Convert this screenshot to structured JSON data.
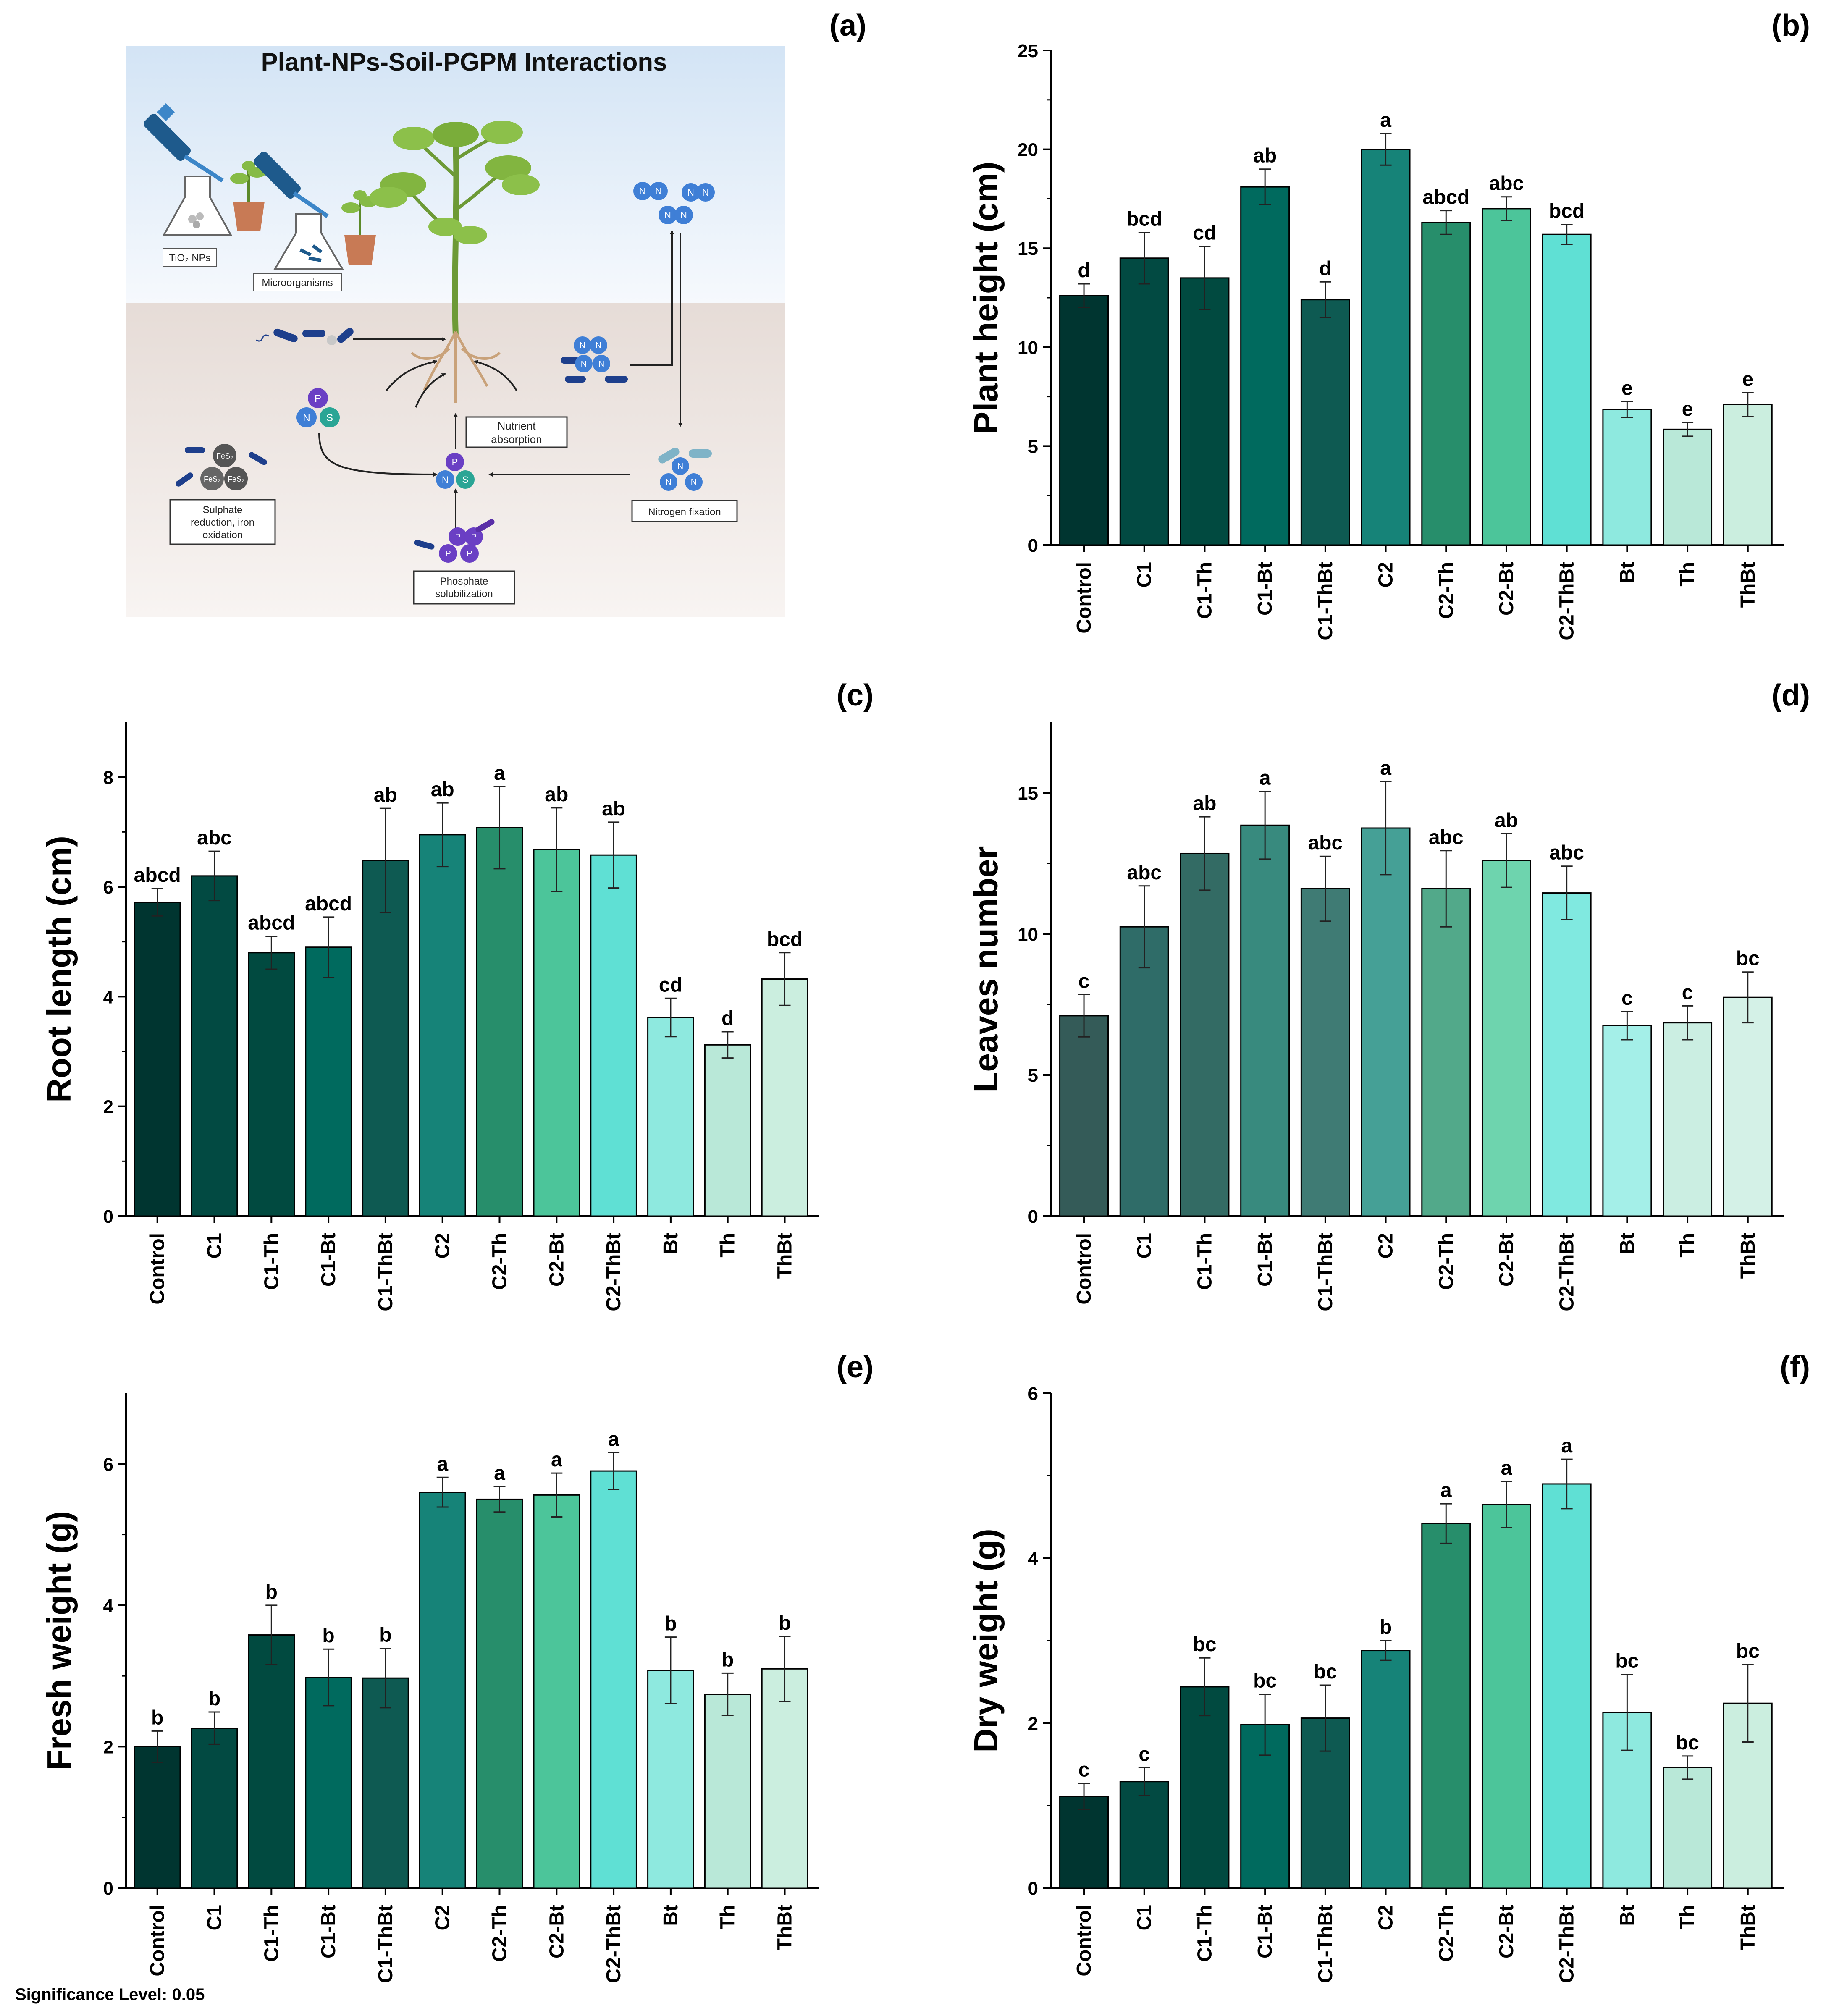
{
  "diagram": {
    "panel_label": "(a)",
    "title": "Plant-NPs-Soil-PGPM Interactions",
    "labels": {
      "tio2": "TiO₂ NPs",
      "microorganisms": "Microorganisms",
      "nutrient": [
        "Nutrient",
        "absorption"
      ],
      "nitrogen": "Nitrogen fixation",
      "sulphate": [
        "Sulphate",
        "reduction, iron",
        "oxidation"
      ],
      "phosphate": [
        "Phosphate",
        "solubilization"
      ]
    },
    "glyphs": {
      "n": "N",
      "p": "P",
      "s": "S",
      "fes": "FeS₂"
    },
    "colors": {
      "sky": "#dce9f6",
      "soil": "#ece3df",
      "nitrogen": "#3f7fd6",
      "phosphorus": "#6a3fc4",
      "sulfur": "#2aa595",
      "tool": "#1e5a8c",
      "pot": "#c87a55",
      "leaf": "#7db33f"
    }
  },
  "significance_note": "Significance Level: 0.05",
  "chart_data": [
    {
      "id": "b",
      "panel_label": "(b)",
      "type": "bar",
      "ylabel": "Plant height (cm)",
      "ylim": [
        0,
        25
      ],
      "yticks": [
        0,
        5,
        10,
        15,
        20,
        25
      ],
      "categories": [
        "Control",
        "C1",
        "C1-Th",
        "C1-Bt",
        "C1-ThBt",
        "C2",
        "C2-Th",
        "C2-Bt",
        "C2-ThBt",
        "Bt",
        "Th",
        "ThBt"
      ],
      "values": [
        12.6,
        14.5,
        13.5,
        18.1,
        12.4,
        20.0,
        16.3,
        17.0,
        15.7,
        6.85,
        5.85,
        7.1
      ],
      "errors": [
        0.6,
        1.3,
        1.6,
        0.9,
        0.9,
        0.8,
        0.6,
        0.6,
        0.5,
        0.4,
        0.35,
        0.6
      ],
      "letters": [
        "d",
        "bcd",
        "cd",
        "ab",
        "d",
        "a",
        "abcd",
        "abc",
        "bcd",
        "e",
        "e",
        "e"
      ],
      "colors": [
        "#003530",
        "#024a42",
        "#014a40",
        "#006a5e",
        "#0e5a52",
        "#168378",
        "#278e6b",
        "#4cc59a",
        "#5fe0d4",
        "#8ee9df",
        "#b9e8d8",
        "#cbeedf"
      ]
    },
    {
      "id": "c",
      "panel_label": "(c)",
      "type": "bar",
      "ylabel": "Root length (cm)",
      "ylim": [
        0,
        9
      ],
      "yticks": [
        0,
        2,
        4,
        6,
        8
      ],
      "categories": [
        "Control",
        "C1",
        "C1-Th",
        "C1-Bt",
        "C1-ThBt",
        "C2",
        "C2-Th",
        "C2-Bt",
        "C2-ThBt",
        "Bt",
        "Th",
        "ThBt"
      ],
      "values": [
        5.72,
        6.2,
        4.8,
        4.9,
        6.48,
        6.95,
        7.08,
        6.68,
        6.58,
        3.62,
        3.12,
        4.32
      ],
      "errors": [
        0.25,
        0.45,
        0.3,
        0.55,
        0.95,
        0.58,
        0.75,
        0.76,
        0.6,
        0.35,
        0.24,
        0.48
      ],
      "letters": [
        "abcd",
        "abc",
        "abcd",
        "abcd",
        "ab",
        "ab",
        "a",
        "ab",
        "ab",
        "cd",
        "d",
        "bcd"
      ],
      "colors": [
        "#003530",
        "#024a42",
        "#014a40",
        "#006a5e",
        "#0e5a52",
        "#168378",
        "#278e6b",
        "#4cc59a",
        "#5fe0d4",
        "#8ee9df",
        "#b9e8d8",
        "#cbeedf"
      ]
    },
    {
      "id": "d",
      "panel_label": "(d)",
      "type": "bar",
      "ylabel": "Leaves number",
      "ylim": [
        0,
        17.5
      ],
      "yticks": [
        0,
        5,
        10,
        15
      ],
      "categories": [
        "Control",
        "C1",
        "C1-Th",
        "C1-Bt",
        "C1-ThBt",
        "C2",
        "C2-Th",
        "C2-Bt",
        "C2-ThBt",
        "Bt",
        "Th",
        "ThBt"
      ],
      "values": [
        7.1,
        10.25,
        12.85,
        13.85,
        11.6,
        13.75,
        11.6,
        12.6,
        11.45,
        6.75,
        6.85,
        7.75
      ],
      "errors": [
        0.75,
        1.45,
        1.3,
        1.2,
        1.15,
        1.65,
        1.35,
        0.95,
        0.95,
        0.5,
        0.6,
        0.9
      ],
      "letters": [
        "c",
        "abc",
        "ab",
        "a",
        "abc",
        "a",
        "abc",
        "ab",
        "abc",
        "c",
        "c",
        "bc"
      ],
      "colors": [
        "#345b58",
        "#2f6c68",
        "#336b64",
        "#388a7e",
        "#3f7b74",
        "#45a096",
        "#52a98a",
        "#6ed4ae",
        "#80e9e0",
        "#a4efe8",
        "#cbeee2",
        "#d4f1e7"
      ]
    },
    {
      "id": "e",
      "panel_label": "(e)",
      "type": "bar",
      "ylabel": "Fresh weight (g)",
      "ylim": [
        0,
        7
      ],
      "yticks": [
        0,
        2,
        4,
        6
      ],
      "categories": [
        "Control",
        "C1",
        "C1-Th",
        "C1-Bt",
        "C1-ThBt",
        "C2",
        "C2-Th",
        "C2-Bt",
        "C2-ThBt",
        "Bt",
        "Th",
        "ThBt"
      ],
      "values": [
        2.0,
        2.26,
        3.58,
        2.98,
        2.97,
        5.6,
        5.5,
        5.56,
        5.9,
        3.08,
        2.74,
        3.1
      ],
      "errors": [
        0.22,
        0.23,
        0.42,
        0.4,
        0.42,
        0.21,
        0.18,
        0.31,
        0.26,
        0.47,
        0.3,
        0.46
      ],
      "letters": [
        "b",
        "b",
        "b",
        "b",
        "b",
        "a",
        "a",
        "a",
        "a",
        "b",
        "b",
        "b"
      ],
      "colors": [
        "#003530",
        "#024a42",
        "#014a40",
        "#006a5e",
        "#0e5a52",
        "#168378",
        "#278e6b",
        "#4cc59a",
        "#5fe0d4",
        "#8ee9df",
        "#b9e8d8",
        "#cbeedf"
      ]
    },
    {
      "id": "f",
      "panel_label": "(f)",
      "type": "bar",
      "ylabel": "Dry weight (g)",
      "ylim": [
        0,
        6
      ],
      "yticks": [
        0,
        2,
        4,
        6
      ],
      "categories": [
        "Control",
        "C1",
        "C1-Th",
        "C1-Bt",
        "C1-ThBt",
        "C2",
        "C2-Th",
        "C2-Bt",
        "C2-ThBt",
        "Bt",
        "Th",
        "ThBt"
      ],
      "values": [
        1.11,
        1.29,
        2.44,
        1.98,
        2.06,
        2.88,
        4.42,
        4.65,
        4.9,
        2.13,
        1.46,
        2.24
      ],
      "errors": [
        0.16,
        0.17,
        0.35,
        0.37,
        0.4,
        0.12,
        0.24,
        0.28,
        0.3,
        0.46,
        0.14,
        0.47
      ],
      "letters": [
        "c",
        "c",
        "bc",
        "bc",
        "bc",
        "b",
        "a",
        "a",
        "a",
        "bc",
        "bc",
        "bc"
      ],
      "colors": [
        "#003530",
        "#024a42",
        "#014a40",
        "#006a5e",
        "#0e5a52",
        "#168378",
        "#278e6b",
        "#4cc59a",
        "#5fe0d4",
        "#8ee9df",
        "#b9e8d8",
        "#cbeedf"
      ]
    }
  ]
}
